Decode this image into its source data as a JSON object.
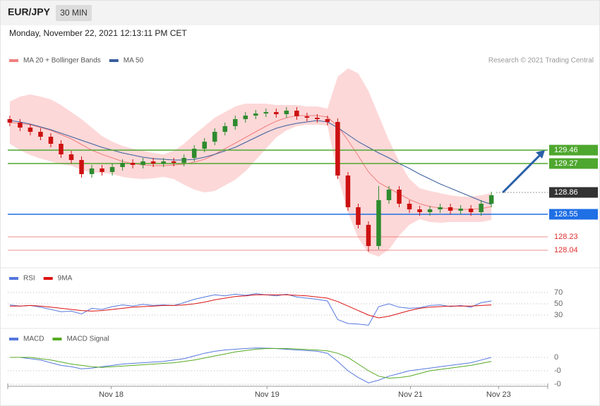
{
  "header": {
    "symbol": "EUR/JPY",
    "interval": "30 MIN",
    "date": "Monday, November 22, 2021 12:13:11 PM CET"
  },
  "chart_data": [
    {
      "type": "candlestick",
      "annotation": "Research © 2021 Trading Central",
      "xlim": [
        -0.2,
        52.5
      ],
      "ylim": [
        127.84,
        130.64
      ],
      "up_color": "#2e8b2e",
      "down_color": "#cc1111",
      "open": [
        129.9,
        129.85,
        129.78,
        129.72,
        129.65,
        129.55,
        129.4,
        129.32,
        129.12,
        129.2,
        129.15,
        129.22,
        129.28,
        129.25,
        129.3,
        129.27,
        129.3,
        129.28,
        129.35,
        129.48,
        129.58,
        129.72,
        129.8,
        129.9,
        129.95,
        129.98,
        130.0,
        129.97,
        130.02,
        129.94,
        129.92,
        129.9,
        129.86,
        129.1,
        128.65,
        128.4,
        128.1,
        128.75,
        128.9,
        128.7,
        128.62,
        128.58,
        128.62,
        128.65,
        128.6,
        128.63,
        128.58,
        128.7
      ],
      "high": [
        129.95,
        129.9,
        129.83,
        129.77,
        129.7,
        129.6,
        129.45,
        129.37,
        129.25,
        129.25,
        129.27,
        129.33,
        129.33,
        129.35,
        129.35,
        129.35,
        129.35,
        129.4,
        129.53,
        129.63,
        129.77,
        129.85,
        129.95,
        130.0,
        130.03,
        130.05,
        130.05,
        130.07,
        130.07,
        129.99,
        129.97,
        129.95,
        129.91,
        129.15,
        128.7,
        128.45,
        128.95,
        128.95,
        128.95,
        128.75,
        128.67,
        128.67,
        128.7,
        128.7,
        128.68,
        128.68,
        128.75,
        128.87
      ],
      "low": [
        129.8,
        129.73,
        129.67,
        129.6,
        129.5,
        129.35,
        129.27,
        129.07,
        129.07,
        129.1,
        129.1,
        129.17,
        129.2,
        129.2,
        129.22,
        129.22,
        129.23,
        129.23,
        129.3,
        129.43,
        129.53,
        129.67,
        129.75,
        129.85,
        129.9,
        129.93,
        129.92,
        129.92,
        129.89,
        129.87,
        129.85,
        129.81,
        129.05,
        128.6,
        128.35,
        128.02,
        128.05,
        128.7,
        128.65,
        128.57,
        128.53,
        128.53,
        128.57,
        128.55,
        128.55,
        128.53,
        128.53,
        128.65
      ],
      "close": [
        129.85,
        129.78,
        129.72,
        129.65,
        129.55,
        129.4,
        129.32,
        129.12,
        129.2,
        129.15,
        129.22,
        129.28,
        129.25,
        129.3,
        129.27,
        129.3,
        129.28,
        129.35,
        129.48,
        129.58,
        129.72,
        129.8,
        129.9,
        129.95,
        129.98,
        130.0,
        129.97,
        130.02,
        129.94,
        129.92,
        129.9,
        129.86,
        129.1,
        128.65,
        128.4,
        128.1,
        128.75,
        128.9,
        128.7,
        128.62,
        128.58,
        128.62,
        128.65,
        128.6,
        128.63,
        128.58,
        128.7,
        128.82
      ],
      "series": [
        {
          "name": "MA 20 + Bollinger Bands",
          "color": "#f08080",
          "band_color": "#fdd8d8",
          "values": [
            129.85,
            129.84,
            129.82,
            129.78,
            129.74,
            129.68,
            129.62,
            129.54,
            129.46,
            129.4,
            129.35,
            129.3,
            129.27,
            129.25,
            129.24,
            129.24,
            129.25,
            129.26,
            129.29,
            129.33,
            129.4,
            129.48,
            129.56,
            129.64,
            129.72,
            129.8,
            129.87,
            129.92,
            129.95,
            129.95,
            129.95,
            129.93,
            129.8,
            129.6,
            129.38,
            129.15,
            129.0,
            128.92,
            128.84,
            128.76,
            128.7,
            128.66,
            128.64,
            128.63,
            128.62,
            128.62,
            128.63,
            128.66
          ],
          "upper": [
            130.15,
            130.22,
            130.25,
            130.22,
            130.18,
            130.1,
            130.0,
            129.9,
            129.78,
            129.66,
            129.58,
            129.52,
            129.48,
            129.45,
            129.42,
            129.4,
            129.45,
            129.55,
            129.68,
            129.8,
            129.92,
            130.0,
            130.08,
            130.12,
            130.12,
            130.12,
            130.1,
            130.1,
            130.1,
            130.08,
            130.08,
            130.05,
            130.5,
            130.62,
            130.55,
            130.3,
            129.95,
            129.6,
            129.3,
            129.05,
            128.92,
            128.88,
            128.85,
            128.82,
            128.8,
            128.8,
            128.82,
            128.85
          ],
          "lower": [
            129.55,
            129.46,
            129.39,
            129.34,
            129.3,
            129.26,
            129.24,
            129.18,
            129.14,
            129.14,
            129.12,
            129.08,
            129.06,
            129.05,
            129.06,
            129.08,
            129.05,
            128.97,
            128.9,
            128.86,
            128.88,
            128.96,
            129.04,
            129.16,
            129.32,
            129.48,
            129.64,
            129.74,
            129.8,
            129.82,
            129.82,
            129.81,
            129.1,
            128.58,
            128.21,
            128.0,
            127.95,
            128.05,
            128.25,
            128.4,
            128.48,
            128.44,
            128.43,
            128.44,
            128.44,
            128.44,
            128.44,
            128.47
          ]
        },
        {
          "name": "MA 50",
          "color": "#3a5f9e",
          "values": [
            129.88,
            129.86,
            129.83,
            129.79,
            129.75,
            129.7,
            129.65,
            129.6,
            129.55,
            129.5,
            129.46,
            129.42,
            129.39,
            129.36,
            129.34,
            129.33,
            129.32,
            129.32,
            129.33,
            129.36,
            129.4,
            129.45,
            129.5,
            129.57,
            129.64,
            129.71,
            129.77,
            129.81,
            129.84,
            129.86,
            129.88,
            129.86,
            129.78,
            129.68,
            129.58,
            129.5,
            129.42,
            129.35,
            129.27,
            129.2,
            129.12,
            129.05,
            128.98,
            128.92,
            128.86,
            128.8,
            128.74,
            128.69
          ]
        }
      ],
      "levels": [
        {
          "value": 129.46,
          "color": "#4ea72e",
          "label_style": "box",
          "line": "solid"
        },
        {
          "value": 129.27,
          "color": "#4ea72e",
          "label_style": "box",
          "line": "solid"
        },
        {
          "value": 128.86,
          "color": "#333333",
          "label_style": "box",
          "line": "dotted"
        },
        {
          "value": 128.55,
          "color": "#1f6fe5",
          "label_style": "box",
          "line": "solid"
        },
        {
          "value": 128.23,
          "color": "#e03030",
          "label_style": "text",
          "line": "solid"
        },
        {
          "value": 128.04,
          "color": "#e03030",
          "label_style": "text",
          "line": "solid"
        }
      ],
      "arrow_color": "#2a5fa8"
    },
    {
      "type": "line",
      "xlim": [
        -0.2,
        52.5
      ],
      "ylim": [
        7.5,
        100
      ],
      "yticks": [
        70,
        50,
        30
      ],
      "series": [
        {
          "name": "RSI",
          "color": "#5577dd",
          "values": [
            48,
            46,
            47,
            44,
            40,
            36,
            37,
            32,
            42,
            40,
            45,
            48,
            46,
            49,
            47,
            48,
            47,
            52,
            58,
            62,
            66,
            64,
            67,
            65,
            68,
            66,
            64,
            67,
            62,
            60,
            58,
            55,
            22,
            15,
            14,
            12,
            45,
            50,
            44,
            42,
            43,
            47,
            48,
            45,
            47,
            44,
            52,
            55
          ]
        },
        {
          "name": "9MA",
          "color": "#dd1111",
          "values": [
            46,
            46,
            47,
            46,
            44,
            42,
            40,
            38,
            37,
            38,
            40,
            42,
            44,
            45,
            46,
            47,
            47,
            48,
            50,
            53,
            57,
            60,
            63,
            64,
            66,
            66,
            66,
            66,
            65,
            64,
            62,
            60,
            54,
            46,
            38,
            30,
            25,
            28,
            33,
            38,
            42,
            44,
            45,
            46,
            46,
            46,
            47,
            48
          ]
        }
      ]
    },
    {
      "type": "line",
      "xlim": [
        -0.2,
        52.5
      ],
      "ylim": [
        -0.215,
        0.115
      ],
      "yticks": [
        0,
        {
          "value": -0.1,
          "label": "-0"
        },
        {
          "value": -0.2,
          "label": "-0"
        }
      ],
      "xticks": [
        {
          "value": 9.9,
          "label": "Nov 18"
        },
        {
          "value": 25.1,
          "label": "Nov 19"
        },
        {
          "value": 39.1,
          "label": "Nov 21"
        },
        {
          "value": 47.7,
          "label": "Nov 23"
        }
      ],
      "series": [
        {
          "name": "MACD",
          "color": "#5577dd",
          "values": [
            0.0,
            0.0,
            -0.01,
            -0.02,
            -0.04,
            -0.06,
            -0.07,
            -0.085,
            -0.08,
            -0.07,
            -0.06,
            -0.05,
            -0.045,
            -0.04,
            -0.035,
            -0.03,
            -0.02,
            -0.01,
            0.01,
            0.03,
            0.045,
            0.055,
            0.06,
            0.065,
            0.07,
            0.068,
            0.065,
            0.06,
            0.055,
            0.05,
            0.045,
            0.03,
            -0.03,
            -0.1,
            -0.15,
            -0.19,
            -0.17,
            -0.14,
            -0.12,
            -0.1,
            -0.09,
            -0.08,
            -0.07,
            -0.06,
            -0.05,
            -0.04,
            -0.02,
            0.0
          ]
        },
        {
          "name": "MACD Signal",
          "color": "#55aa22",
          "values": [
            0.0,
            0.0,
            0.0,
            -0.01,
            -0.02,
            -0.035,
            -0.05,
            -0.06,
            -0.07,
            -0.075,
            -0.07,
            -0.065,
            -0.06,
            -0.055,
            -0.05,
            -0.045,
            -0.04,
            -0.03,
            -0.02,
            -0.005,
            0.01,
            0.025,
            0.04,
            0.05,
            0.06,
            0.065,
            0.066,
            0.065,
            0.062,
            0.058,
            0.054,
            0.048,
            0.03,
            0.0,
            -0.05,
            -0.1,
            -0.14,
            -0.155,
            -0.15,
            -0.14,
            -0.12,
            -0.1,
            -0.09,
            -0.08,
            -0.07,
            -0.06,
            -0.045,
            -0.03
          ]
        }
      ]
    }
  ]
}
